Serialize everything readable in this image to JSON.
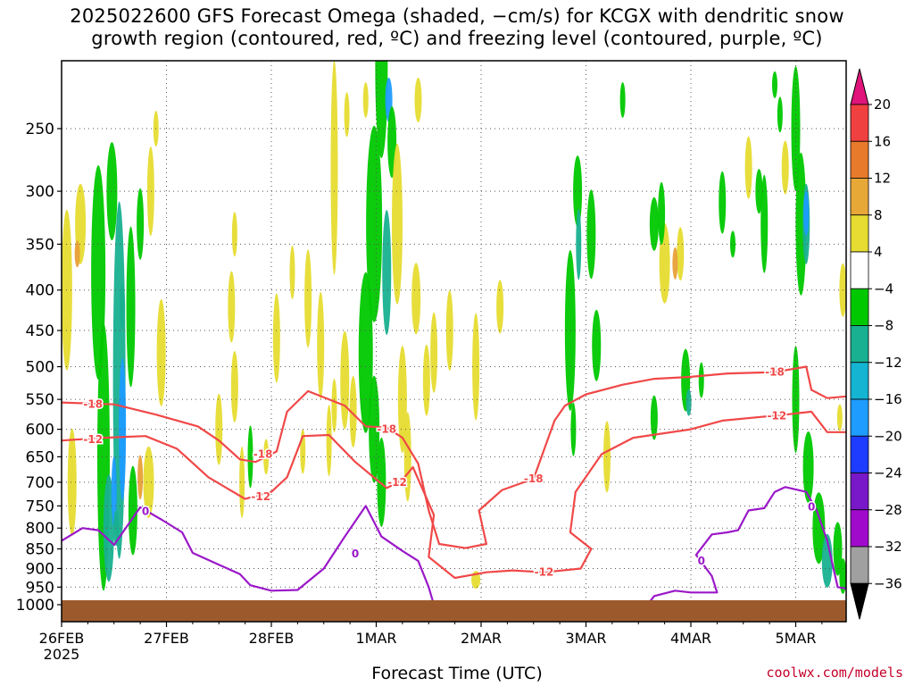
{
  "title_line1": "2025022600 GFS Forecast Omega (shaded, −cm/s) for KCGX with dendritic snow",
  "title_line2": "growth region (contoured, red, ºC) and freezing level (contoured, purple, ºC)",
  "xlabel": "Forecast Time (UTC)",
  "credit": "coolwx.com/models",
  "colors": {
    "ground": "#9c5a2c",
    "contour_red": "#f04848",
    "contour_purple": "#9a18c8",
    "omega_green": "#00c800",
    "omega_teal": "#18b090",
    "omega_lightblue": "#1e9cff",
    "omega_yellow": "#e6dc32",
    "omega_orange": "#e8a038"
  },
  "chart_data": {
    "type": "heatmap",
    "title": "2025022600 GFS Forecast Omega (shaded, −cm/s) for KCGX with dendritic snow growth region (contoured, red, ºC) and freezing level (contoured, purple, ºC)",
    "xlabel": "Forecast Time (UTC)",
    "ylabel": "",
    "x_ticks": [
      "26FEB",
      "27FEB",
      "28FEB",
      "1MAR",
      "2MAR",
      "3MAR",
      "4MAR",
      "5MAR"
    ],
    "x_sublabel": "2025",
    "x_range_days": [
      0,
      7.5
    ],
    "y_ticks": [
      250,
      300,
      350,
      400,
      450,
      500,
      550,
      600,
      650,
      700,
      750,
      800,
      850,
      900,
      950,
      1000
    ],
    "y_range_hpa": [
      200,
      1025
    ],
    "y_scale": "log-pressure",
    "grid": true,
    "colorbar": {
      "labels": [
        "20",
        "16",
        "12",
        "8",
        "4",
        "−4",
        "−8",
        "−12",
        "−16",
        "−20",
        "−24",
        "−28",
        "−32",
        "−36"
      ],
      "bins": [
        {
          "range": [
            16,
            20
          ],
          "color": "#f04040"
        },
        {
          "range": [
            12,
            16
          ],
          "color": "#e87a2c"
        },
        {
          "range": [
            8,
            12
          ],
          "color": "#e8a838"
        },
        {
          "range": [
            4,
            8
          ],
          "color": "#e6dc32"
        },
        {
          "range": [
            -4,
            4
          ],
          "color": "#ffffff"
        },
        {
          "range": [
            -8,
            -4
          ],
          "color": "#00c800"
        },
        {
          "range": [
            -12,
            -8
          ],
          "color": "#18b090"
        },
        {
          "range": [
            -16,
            -12
          ],
          "color": "#14b4d2"
        },
        {
          "range": [
            -20,
            -16
          ],
          "color": "#1e9cff"
        },
        {
          "range": [
            -24,
            -20
          ],
          "color": "#1e3cff"
        },
        {
          "range": [
            -28,
            -24
          ],
          "color": "#7818c8"
        },
        {
          "range": [
            -32,
            -28
          ],
          "color": "#a00aca"
        },
        {
          "range": [
            -36,
            -32
          ],
          "color": "#a0a0a0"
        }
      ],
      "top_color": "#e0147a",
      "bottom_color": "#000000"
    },
    "contours": [
      {
        "name": "-18",
        "color": "#f04848",
        "label": "-18",
        "points": [
          [
            0,
            555
          ],
          [
            0.5,
            558
          ],
          [
            0.9,
            575
          ],
          [
            1.3,
            595
          ],
          [
            1.5,
            620
          ],
          [
            1.7,
            655
          ],
          [
            1.85,
            660
          ],
          [
            2.05,
            640
          ],
          [
            2.15,
            570
          ],
          [
            2.35,
            537
          ],
          [
            2.7,
            560
          ],
          [
            2.9,
            595
          ],
          [
            3.1,
            597
          ],
          [
            3.25,
            615
          ],
          [
            3.4,
            663
          ],
          [
            3.5,
            760
          ],
          [
            3.6,
            838
          ],
          [
            3.85,
            848
          ],
          [
            4.05,
            838
          ],
          [
            3.98,
            760
          ],
          [
            4.2,
            716
          ],
          [
            4.5,
            693
          ],
          [
            4.7,
            585
          ],
          [
            4.8,
            560
          ],
          [
            5.0,
            542
          ],
          [
            5.35,
            527
          ],
          [
            5.65,
            518
          ],
          [
            6.0,
            515
          ],
          [
            6.35,
            510
          ],
          [
            6.8,
            508
          ],
          [
            7.1,
            500
          ],
          [
            7.15,
            535
          ],
          [
            7.3,
            548
          ],
          [
            7.5,
            545
          ]
        ],
        "labels": [
          [
            0.3,
            558,
            "-18"
          ],
          [
            1.92,
            645,
            "-18"
          ],
          [
            3.1,
            600,
            "-18"
          ],
          [
            4.5,
            693,
            "-18"
          ],
          [
            6.8,
            508,
            "-18"
          ]
        ]
      },
      {
        "name": "-12",
        "color": "#f04848",
        "label": "-12",
        "points": [
          [
            0,
            620
          ],
          [
            0.4,
            615
          ],
          [
            0.8,
            612
          ],
          [
            1.1,
            635
          ],
          [
            1.4,
            690
          ],
          [
            1.75,
            735
          ],
          [
            2.0,
            720
          ],
          [
            2.15,
            690
          ],
          [
            2.3,
            612
          ],
          [
            2.55,
            610
          ],
          [
            2.8,
            660
          ],
          [
            3.1,
            712
          ],
          [
            3.25,
            695
          ],
          [
            3.35,
            670
          ],
          [
            3.55,
            770
          ],
          [
            3.5,
            870
          ],
          [
            3.75,
            925
          ],
          [
            4.05,
            910
          ],
          [
            4.3,
            905
          ],
          [
            4.6,
            910
          ],
          [
            4.95,
            900
          ],
          [
            5.05,
            850
          ],
          [
            4.85,
            810
          ],
          [
            4.9,
            720
          ],
          [
            5.15,
            645
          ],
          [
            5.45,
            615
          ],
          [
            6.0,
            600
          ],
          [
            6.3,
            585
          ],
          [
            6.9,
            575
          ],
          [
            7.15,
            570
          ],
          [
            7.3,
            605
          ],
          [
            7.5,
            605
          ]
        ],
        "labels": [
          [
            0.3,
            618,
            "-12"
          ],
          [
            1.9,
            730,
            "-12"
          ],
          [
            3.2,
            700,
            "-12"
          ],
          [
            4.6,
            910,
            "-12"
          ],
          [
            6.82,
            577,
            "-12"
          ]
        ]
      },
      {
        "name": "0",
        "color": "#9a18c8",
        "label": "0",
        "points": [
          [
            0,
            830
          ],
          [
            0.2,
            800
          ],
          [
            0.35,
            805
          ],
          [
            0.5,
            840
          ],
          [
            0.75,
            753
          ],
          [
            0.95,
            780
          ],
          [
            1.15,
            810
          ],
          [
            1.25,
            860
          ],
          [
            1.5,
            890
          ],
          [
            1.7,
            915
          ],
          [
            1.8,
            945
          ],
          [
            2.0,
            960
          ],
          [
            2.25,
            958
          ],
          [
            2.5,
            900
          ],
          [
            2.7,
            820
          ],
          [
            2.9,
            750
          ],
          [
            3.05,
            820
          ],
          [
            3.25,
            855
          ],
          [
            3.4,
            880
          ],
          [
            3.5,
            950
          ],
          [
            3.55,
            1000
          ]
        ],
        "labels": [
          [
            0.8,
            762,
            "0"
          ],
          [
            2.8,
            862,
            "0"
          ]
        ]
      },
      {
        "name": "0-east",
        "color": "#9a18c8",
        "label": "0",
        "points": [
          [
            5.35,
            1005
          ],
          [
            5.6,
            995
          ],
          [
            5.65,
            975
          ],
          [
            5.85,
            960
          ],
          [
            6.0,
            965
          ],
          [
            6.25,
            965
          ],
          [
            6.2,
            920
          ],
          [
            6.05,
            865
          ],
          [
            6.2,
            815
          ],
          [
            6.35,
            810
          ],
          [
            6.45,
            805
          ],
          [
            6.55,
            760
          ],
          [
            6.7,
            755
          ],
          [
            6.8,
            720
          ],
          [
            6.9,
            710
          ],
          [
            7.1,
            720
          ],
          [
            7.2,
            760
          ],
          [
            7.3,
            830
          ],
          [
            7.4,
            950
          ],
          [
            7.5,
            955
          ]
        ],
        "labels": [
          [
            6.1,
            880,
            "0"
          ],
          [
            7.15,
            752,
            "0"
          ]
        ]
      }
    ]
  }
}
